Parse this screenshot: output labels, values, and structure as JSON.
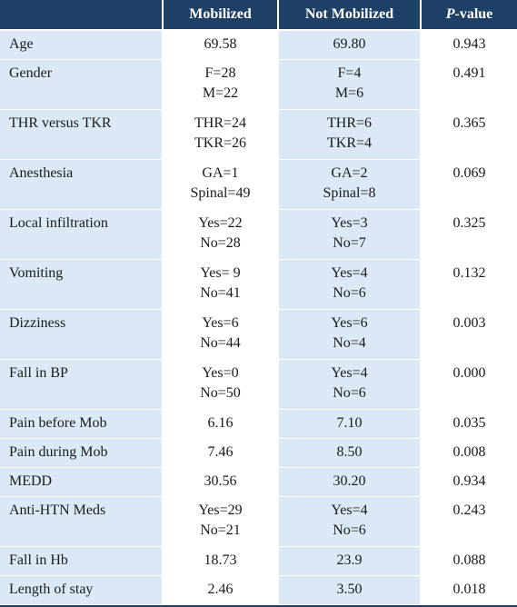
{
  "header": {
    "col1": "",
    "col2": "Mobilized",
    "col3": "Not Mobilized",
    "col4_italic": "P",
    "col4_rest": "-value"
  },
  "rows": [
    {
      "label": "Age",
      "mob": [
        "69.58"
      ],
      "notmob": [
        "69.80"
      ],
      "p": "0.943"
    },
    {
      "label": "Gender",
      "mob": [
        "F=28",
        "M=22"
      ],
      "notmob": [
        "F=4",
        "M=6"
      ],
      "p": "0.491"
    },
    {
      "label": "THR versus TKR",
      "mob": [
        "THR=24",
        "TKR=26"
      ],
      "notmob": [
        "THR=6",
        "TKR=4"
      ],
      "p": "0.365"
    },
    {
      "label": "Anesthesia",
      "mob": [
        "GA=1",
        "Spinal=49"
      ],
      "notmob": [
        "GA=2",
        "Spinal=8"
      ],
      "p": "0.069"
    },
    {
      "label": "Local infiltration",
      "mob": [
        "Yes=22",
        "No=28"
      ],
      "notmob": [
        "Yes=3",
        "No=7"
      ],
      "p": "0.325"
    },
    {
      "label": "Vomiting",
      "mob": [
        "Yes= 9",
        "No=41"
      ],
      "notmob": [
        "Yes=4",
        "No=6"
      ],
      "p": "0.132"
    },
    {
      "label": "Dizziness",
      "mob": [
        "Yes=6",
        "No=44"
      ],
      "notmob": [
        "Yes=6",
        "No=4"
      ],
      "p": "0.003"
    },
    {
      "label": "Fall in BP",
      "mob": [
        "Yes=0",
        "No=50"
      ],
      "notmob": [
        "Yes=4",
        "No=6"
      ],
      "p": "0.000"
    },
    {
      "label": "Pain before Mob",
      "mob": [
        "6.16"
      ],
      "notmob": [
        "7.10"
      ],
      "p": "0.035"
    },
    {
      "label": "Pain during Mob",
      "mob": [
        "7.46"
      ],
      "notmob": [
        "8.50"
      ],
      "p": "0.008"
    },
    {
      "label": "MEDD",
      "mob": [
        "30.56"
      ],
      "notmob": [
        "30.20"
      ],
      "p": "0.934"
    },
    {
      "label": "Anti-HTN Meds",
      "mob": [
        "Yes=29",
        "No=21"
      ],
      "notmob": [
        "Yes=4",
        "No=6"
      ],
      "p": "0.243"
    },
    {
      "label": "Fall in Hb",
      "mob": [
        "18.73"
      ],
      "notmob": [
        "23.9"
      ],
      "p": "0.088"
    },
    {
      "label": "Length of stay",
      "mob": [
        "2.46"
      ],
      "notmob": [
        "3.50"
      ],
      "p": "0.018"
    }
  ]
}
